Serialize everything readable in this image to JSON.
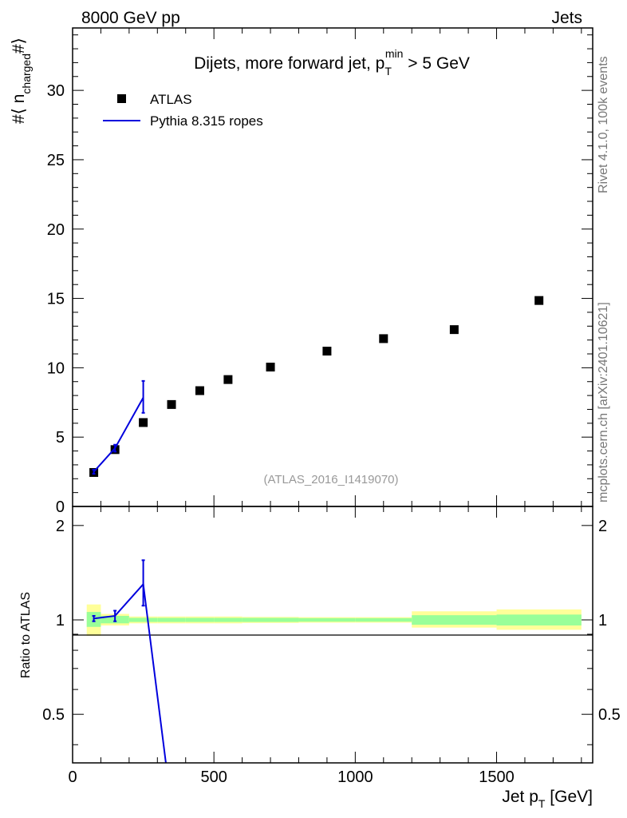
{
  "header": {
    "left": "8000 GeV pp",
    "right": "Jets"
  },
  "side_labels": {
    "rivet": "Rivet 4.1.0,  100k events",
    "mcplots": "mcplots.cern.ch [arXiv:2401.10621]"
  },
  "chart_data": [
    {
      "type": "scatter",
      "title": "Dijets, more forward jet, p",
      "title_sub": "T",
      "title_sup": "min",
      "title_rest": " > 5 GeV",
      "ylabel_parts": [
        "#",
        "⟨ n",
        "charged",
        "#",
        "⟩"
      ],
      "xlim": [
        0,
        1840
      ],
      "ylim": [
        0,
        34.5
      ],
      "yticks": [
        0,
        5,
        10,
        15,
        20,
        25,
        30
      ],
      "ytick_labels": [
        "0",
        "5",
        "10",
        "15",
        "20",
        "25",
        "30"
      ],
      "watermark": "(ATLAS_2016_I1419070)",
      "legend": {
        "placement": "top-left",
        "entries": [
          "ATLAS",
          "Pythia 8.315 ropes"
        ]
      },
      "series": [
        {
          "name": "ATLAS",
          "style": "marker",
          "color": "#000000",
          "x": [
            75,
            150,
            250,
            350,
            450,
            550,
            700,
            900,
            1100,
            1350,
            1650
          ],
          "y": [
            2.45,
            4.1,
            6.05,
            7.35,
            8.35,
            9.15,
            10.05,
            11.2,
            12.1,
            12.75,
            14.85
          ]
        },
        {
          "name": "Pythia 8.315 ropes",
          "style": "line",
          "color": "#0000dd",
          "x": [
            75,
            150,
            250
          ],
          "y": [
            2.5,
            4.2,
            7.85
          ],
          "err_low": [
            0.15,
            0.25,
            1.1
          ],
          "err_high": [
            0.15,
            0.25,
            1.2
          ]
        }
      ]
    },
    {
      "type": "line",
      "ylabel": "Ratio to ATLAS",
      "xlabel_main": "Jet p",
      "xlabel_sub": "T",
      "xlabel_rest": " [GeV]",
      "xlim": [
        0,
        1840
      ],
      "ylim": [
        0.35,
        2.3
      ],
      "yticks": [
        0.5,
        1,
        2
      ],
      "ytick_labels": [
        "0.5",
        "1",
        "2"
      ],
      "xticks": [
        0,
        500,
        1000,
        1500
      ],
      "xtick_labels": [
        "0",
        "500",
        "1000",
        "1500"
      ],
      "bands": [
        {
          "xlow": 50,
          "xhigh": 100,
          "y1lo": 0.95,
          "y1hi": 1.06,
          "y2lo": 0.89,
          "y2hi": 1.12
        },
        {
          "xlow": 100,
          "xhigh": 200,
          "y1lo": 0.975,
          "y1hi": 1.03,
          "y2lo": 0.96,
          "y2hi": 1.045
        },
        {
          "xlow": 200,
          "xhigh": 300,
          "y1lo": 0.985,
          "y1hi": 1.015,
          "y2lo": 0.975,
          "y2hi": 1.025
        },
        {
          "xlow": 300,
          "xhigh": 400,
          "y1lo": 0.985,
          "y1hi": 1.015,
          "y2lo": 0.975,
          "y2hi": 1.025
        },
        {
          "xlow": 400,
          "xhigh": 500,
          "y1lo": 0.985,
          "y1hi": 1.015,
          "y2lo": 0.975,
          "y2hi": 1.025
        },
        {
          "xlow": 500,
          "xhigh": 600,
          "y1lo": 0.985,
          "y1hi": 1.015,
          "y2lo": 0.975,
          "y2hi": 1.025
        },
        {
          "xlow": 600,
          "xhigh": 800,
          "y1lo": 0.985,
          "y1hi": 1.015,
          "y2lo": 0.978,
          "y2hi": 1.022
        },
        {
          "xlow": 800,
          "xhigh": 1000,
          "y1lo": 0.987,
          "y1hi": 1.013,
          "y2lo": 0.98,
          "y2hi": 1.02
        },
        {
          "xlow": 1000,
          "xhigh": 1200,
          "y1lo": 0.987,
          "y1hi": 1.013,
          "y2lo": 0.98,
          "y2hi": 1.02
        },
        {
          "xlow": 1200,
          "xhigh": 1500,
          "y1lo": 0.965,
          "y1hi": 1.035,
          "y2lo": 0.945,
          "y2hi": 1.065
        },
        {
          "xlow": 1500,
          "xhigh": 1800,
          "y1lo": 0.96,
          "y1hi": 1.04,
          "y2lo": 0.93,
          "y2hi": 1.08
        }
      ],
      "band_colors": {
        "inner": "#99ff99",
        "outer": "#ffff99"
      },
      "series": [
        {
          "name": "Pythia 8.315 ropes",
          "color": "#0000dd",
          "x": [
            75,
            150,
            250,
            330
          ],
          "y": [
            1.01,
            1.03,
            1.3,
            0.35
          ],
          "err_low": [
            0.02,
            0.04,
            0.19,
            0
          ],
          "err_high": [
            0.02,
            0.04,
            0.25,
            0
          ],
          "marker_count": 3
        }
      ]
    }
  ]
}
